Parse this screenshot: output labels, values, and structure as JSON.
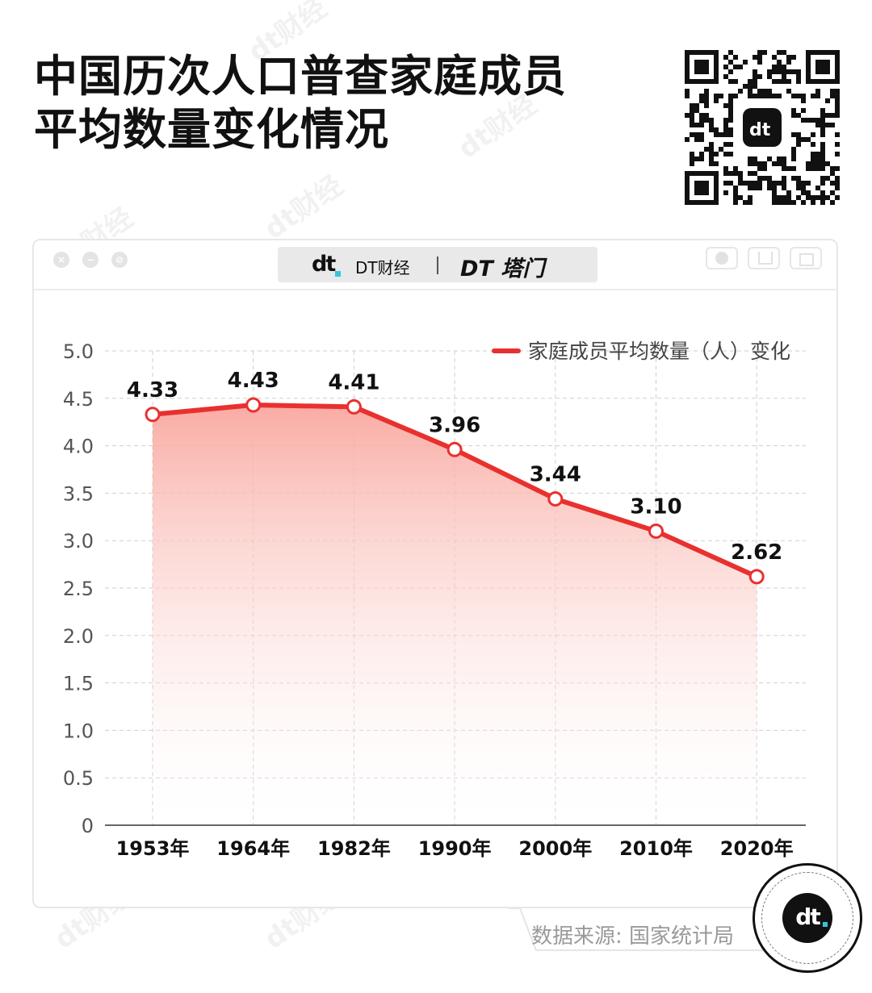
{
  "page": {
    "title_line1": "中国历次人口普查家庭成员",
    "title_line2": "平均数量变化情况",
    "watermark_text": "dt财经"
  },
  "window": {
    "brand_logo": "dt",
    "brand_name": "DT财经",
    "brand_name2": "DT 塔门"
  },
  "source": {
    "text": "数据来源: 国家统计局"
  },
  "badge": {
    "logo": "dt"
  },
  "colors": {
    "line": "#e8312f",
    "accent": "#35c5d8",
    "fill_top": "#f9a79f"
  },
  "chart_data": {
    "type": "area",
    "categories": [
      "1953年",
      "1964年",
      "1982年",
      "1990年",
      "2000年",
      "2010年",
      "2020年"
    ],
    "series": [
      {
        "name": "家庭成员平均数量（人）变化",
        "values": [
          4.33,
          4.43,
          4.41,
          3.96,
          3.44,
          3.1,
          2.62
        ]
      }
    ],
    "data_labels": [
      "4.33",
      "4.43",
      "4.41",
      "3.96",
      "3.44",
      "3.10",
      "2.62"
    ],
    "yticks": [
      "0",
      "0.5",
      "1.0",
      "1.5",
      "2.0",
      "2.5",
      "3.0",
      "3.5",
      "4.0",
      "4.5",
      "5.0"
    ],
    "ylim": [
      0,
      5
    ],
    "grid": true,
    "legend_position": "top-right"
  }
}
